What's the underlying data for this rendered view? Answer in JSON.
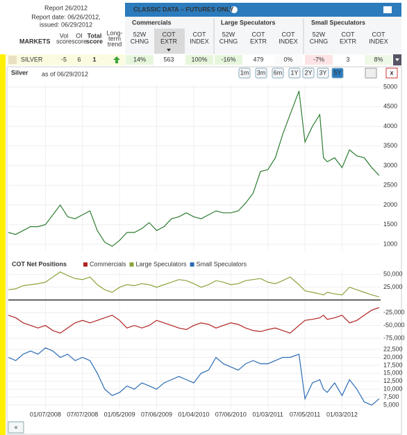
{
  "header": {
    "report": "Report 26/2012",
    "date": "Report date: 06/26/2012,",
    "issued": "issued: 06/29/2012",
    "banner": "CLASSIC DATA – FUTURES ONLY",
    "markets": "MARKETS",
    "columns": [
      [
        "Vol",
        "score"
      ],
      [
        "OI",
        "score"
      ],
      [
        "Total",
        "score"
      ],
      [
        "Long-",
        "term",
        "trend"
      ]
    ],
    "groups": [
      {
        "name": "Commercials",
        "columns": [
          [
            "52W",
            "CHNG"
          ],
          [
            "COT",
            "EXTR"
          ],
          [
            "COT",
            "INDEX"
          ]
        ],
        "values": [
          "14%",
          "563",
          "100%"
        ]
      },
      {
        "name": "Large Speculators",
        "columns": [
          [
            "52W",
            "CHNG"
          ],
          [
            "COT",
            "EXTR"
          ],
          [
            "COT",
            "INDEX"
          ]
        ],
        "values": [
          "-16%",
          "479",
          "0%"
        ]
      },
      {
        "name": "Small Speculators",
        "columns": [
          [
            "52W",
            "CHNG"
          ],
          [
            "COT",
            "EXTR"
          ],
          [
            "COT",
            "INDEX"
          ]
        ],
        "values": [
          "-7%",
          "3",
          "8%"
        ]
      }
    ],
    "row": {
      "market": "SILVER",
      "vol": -5,
      "oi": 6,
      "total": 1
    }
  },
  "panel": {
    "ranges": [
      "1m",
      "3m",
      "6m",
      "1Y",
      "2Y",
      "3Y",
      "5Y"
    ],
    "active": "5Y",
    "close": "x",
    "back": "«"
  },
  "chart_data": [
    {
      "type": "line",
      "title": "Silver",
      "subtitle": "as of 06/29/2012",
      "grid": true,
      "x": [
        2007.5,
        2007.6,
        2007.7,
        2007.8,
        2007.9,
        2008.0,
        2008.1,
        2008.2,
        2008.3,
        2008.4,
        2008.5,
        2008.6,
        2008.7,
        2008.8,
        2008.9,
        2009.0,
        2009.1,
        2009.2,
        2009.3,
        2009.4,
        2009.5,
        2009.6,
        2009.7,
        2009.8,
        2009.9,
        2010.0,
        2010.1,
        2010.2,
        2010.3,
        2010.4,
        2010.5,
        2010.6,
        2010.7,
        2010.8,
        2010.9,
        2011.0,
        2011.1,
        2011.2,
        2011.3,
        2011.42,
        2011.5,
        2011.6,
        2011.7,
        2011.75,
        2011.8,
        2011.9,
        2012.0,
        2012.1,
        2012.2,
        2012.3,
        2012.4,
        2012.5
      ],
      "series": [
        {
          "name": "Silver",
          "color": "#2e7d32",
          "values": [
            1300,
            1250,
            1350,
            1450,
            1450,
            1500,
            1750,
            2000,
            1700,
            1650,
            1750,
            1850,
            1350,
            1050,
            950,
            1100,
            1300,
            1300,
            1400,
            1550,
            1350,
            1450,
            1650,
            1700,
            1800,
            1700,
            1650,
            1750,
            1850,
            1800,
            1800,
            1850,
            2050,
            2300,
            2850,
            2900,
            3200,
            3800,
            4300,
            4900,
            3600,
            4000,
            4300,
            3200,
            3100,
            3200,
            2950,
            3400,
            3250,
            3200,
            2950,
            2750
          ]
        }
      ],
      "xlim": [
        2007.5,
        2012.52
      ],
      "ylim": [
        840,
        5090
      ],
      "yticks": [
        1000,
        1500,
        2000,
        2500,
        3000,
        3500,
        4000,
        4500,
        5000
      ]
    },
    {
      "type": "line",
      "title": "COT Net Positions",
      "grid": true,
      "x": [
        2007.5,
        2007.6,
        2007.7,
        2007.8,
        2007.9,
        2008.0,
        2008.1,
        2008.2,
        2008.3,
        2008.4,
        2008.5,
        2008.6,
        2008.7,
        2008.8,
        2008.9,
        2009.0,
        2009.1,
        2009.2,
        2009.3,
        2009.4,
        2009.5,
        2009.6,
        2009.7,
        2009.8,
        2009.9,
        2010.0,
        2010.1,
        2010.2,
        2010.3,
        2010.4,
        2010.5,
        2010.6,
        2010.7,
        2010.8,
        2010.9,
        2011.0,
        2011.1,
        2011.2,
        2011.3,
        2011.42,
        2011.5,
        2011.6,
        2011.7,
        2011.75,
        2011.8,
        2011.9,
        2012.0,
        2012.1,
        2012.2,
        2012.3,
        2012.4,
        2012.5
      ],
      "series": [
        {
          "name": "Commercials",
          "color": "#b22222",
          "values": [
            -30000,
            -35000,
            -45000,
            -50000,
            -55000,
            -50000,
            -60000,
            -65000,
            -55000,
            -45000,
            -40000,
            -45000,
            -40000,
            -35000,
            -30000,
            -40000,
            -55000,
            -50000,
            -55000,
            -50000,
            -40000,
            -45000,
            -50000,
            -55000,
            -58000,
            -50000,
            -45000,
            -48000,
            -55000,
            -50000,
            -45000,
            -48000,
            -55000,
            -60000,
            -62000,
            -58000,
            -55000,
            -60000,
            -65000,
            -50000,
            -40000,
            -38000,
            -35000,
            -30000,
            -38000,
            -35000,
            -30000,
            -45000,
            -40000,
            -30000,
            -20000,
            -15000
          ]
        },
        {
          "name": "Large Speculators",
          "color": "#8aa43a",
          "values": [
            20000,
            22000,
            28000,
            30000,
            32000,
            35000,
            45000,
            55000,
            48000,
            42000,
            40000,
            45000,
            30000,
            20000,
            15000,
            25000,
            30000,
            28000,
            32000,
            30000,
            25000,
            30000,
            35000,
            40000,
            38000,
            32000,
            25000,
            30000,
            38000,
            35000,
            30000,
            32000,
            38000,
            40000,
            42000,
            35000,
            32000,
            38000,
            45000,
            30000,
            18000,
            15000,
            12000,
            10000,
            15000,
            12000,
            10000,
            25000,
            20000,
            15000,
            10000,
            6000
          ]
        }
      ],
      "xlim": [
        2007.5,
        2012.52
      ],
      "ylim": [
        -80600,
        58700
      ],
      "yticks": [
        {
          "value": 50000,
          "label": "50,000"
        },
        {
          "value": 25000,
          "label": "25,000"
        },
        {
          "value": -25000,
          "label": "-25,000"
        },
        {
          "value": -50000,
          "label": "-50,000"
        },
        {
          "value": -75000,
          "label": "-75,000"
        }
      ]
    },
    {
      "type": "line",
      "grid": true,
      "x": [
        2007.5,
        2007.6,
        2007.7,
        2007.8,
        2007.9,
        2008.0,
        2008.1,
        2008.2,
        2008.3,
        2008.4,
        2008.5,
        2008.6,
        2008.7,
        2008.8,
        2008.9,
        2009.0,
        2009.1,
        2009.2,
        2009.3,
        2009.4,
        2009.5,
        2009.6,
        2009.7,
        2009.8,
        2009.9,
        2010.0,
        2010.1,
        2010.2,
        2010.3,
        2010.4,
        2010.5,
        2010.6,
        2010.7,
        2010.8,
        2010.9,
        2011.0,
        2011.1,
        2011.2,
        2011.3,
        2011.42,
        2011.5,
        2011.6,
        2011.7,
        2011.75,
        2011.8,
        2011.9,
        2012.0,
        2012.1,
        2012.2,
        2012.3,
        2012.4,
        2012.5
      ],
      "series": [
        {
          "name": "Small Speculators",
          "color": "#2a6ab4",
          "values": [
            20000,
            19000,
            21000,
            22000,
            21000,
            23000,
            22000,
            20000,
            21000,
            19000,
            20000,
            19000,
            15000,
            10000,
            8000,
            9000,
            11000,
            10000,
            12000,
            11000,
            10000,
            12000,
            13000,
            14000,
            13000,
            12000,
            15000,
            16000,
            20000,
            18000,
            17000,
            16000,
            18000,
            19000,
            18000,
            18000,
            19000,
            20000,
            20000,
            21000,
            7000,
            12000,
            13000,
            10000,
            9000,
            12000,
            8000,
            13000,
            10000,
            6000,
            5000,
            7000
          ]
        }
      ],
      "xlim": [
        2007.5,
        2012.52
      ],
      "ylim": [
        3700,
        24700
      ],
      "yticks": [
        {
          "value": 5000,
          "label": "5,000"
        },
        {
          "value": 7500,
          "label": "7,500"
        },
        {
          "value": 10000,
          "label": "10,000"
        },
        {
          "value": 12500,
          "label": "12,500"
        },
        {
          "value": 15000,
          "label": "15,000"
        },
        {
          "value": 17500,
          "label": "17,500"
        },
        {
          "value": 20000,
          "label": "20,000"
        },
        {
          "value": 22500,
          "label": "22,500"
        }
      ],
      "xticks": [
        {
          "value": 2008.0,
          "label": "01/07/2008"
        },
        {
          "value": 2008.5,
          "label": "07/07/2008"
        },
        {
          "value": 2009.0,
          "label": "01/05/2009"
        },
        {
          "value": 2009.5,
          "label": "07/06/2009"
        },
        {
          "value": 2010.0,
          "label": "01/04/2010"
        },
        {
          "value": 2010.5,
          "label": "07/06/2010"
        },
        {
          "value": 2011.0,
          "label": "01/03/2011"
        },
        {
          "value": 2011.5,
          "label": "07/05/2011"
        },
        {
          "value": 2012.0,
          "label": "01/03/2012"
        }
      ]
    }
  ]
}
